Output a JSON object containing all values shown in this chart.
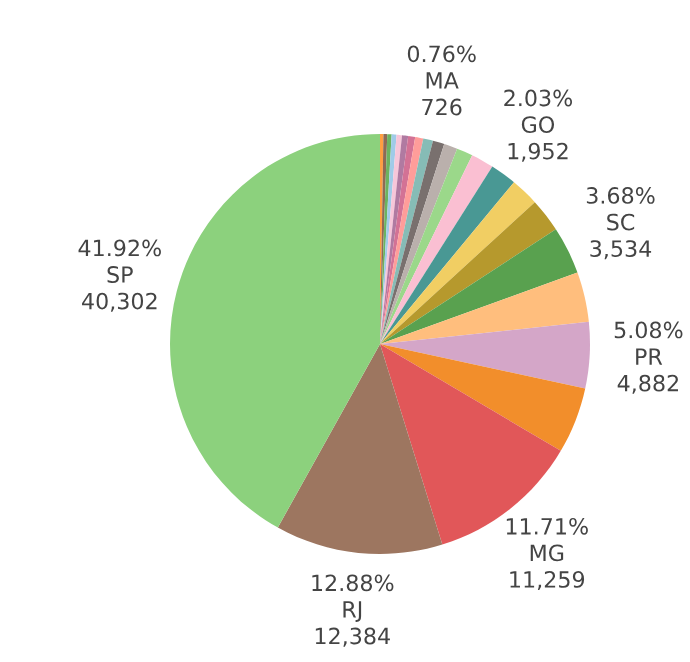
{
  "chart_data": {
    "type": "pie",
    "categories": [
      null,
      null,
      null,
      null,
      null,
      null,
      null,
      null,
      "MA",
      null,
      null,
      null,
      null,
      "GO",
      null,
      null,
      "SC",
      null,
      "PR",
      null,
      "MG",
      "RJ",
      "SP"
    ],
    "values": [
      250,
      280,
      320,
      360,
      400,
      450,
      520,
      600,
      726,
      850,
      1000,
      1200,
      1680,
      1952,
      2100,
      2500,
      3534,
      3700,
      4882,
      4900,
      11259,
      12384,
      40302
    ],
    "value_labels": [
      null,
      null,
      null,
      null,
      null,
      null,
      null,
      null,
      "726",
      null,
      null,
      null,
      null,
      "1,952",
      null,
      null,
      "3,534",
      null,
      "4,882",
      null,
      "11,259",
      "12,384",
      "40,302"
    ],
    "annotations": [
      {
        "text": "0.76%",
        "x": "MA"
      },
      {
        "text": "2.03%",
        "x": "GO"
      },
      {
        "text": "3.68%",
        "x": "SC"
      },
      {
        "text": "5.08%",
        "x": "PR"
      },
      {
        "text": "11.71%",
        "x": "MG"
      },
      {
        "text": "12.88%",
        "x": "RJ"
      },
      {
        "text": "41.92%",
        "x": "SP"
      }
    ],
    "colors": [
      "#ff9f40",
      "#8f6a55",
      "#6cb35f",
      "#a0cbe8",
      "#f7c6d9",
      "#b07aa1",
      "#d37295",
      "#ff9d9a",
      "#86bcb6",
      "#79706e",
      "#bab0ac",
      "#9bd88a",
      "#fabfd2",
      "#499894",
      "#f1ce63",
      "#b6992d",
      "#59a14f",
      "#ffbe7d",
      "#d4a6c8",
      "#f28e2b",
      "#e15759",
      "#9d7660",
      "#8cd17d"
    ]
  }
}
